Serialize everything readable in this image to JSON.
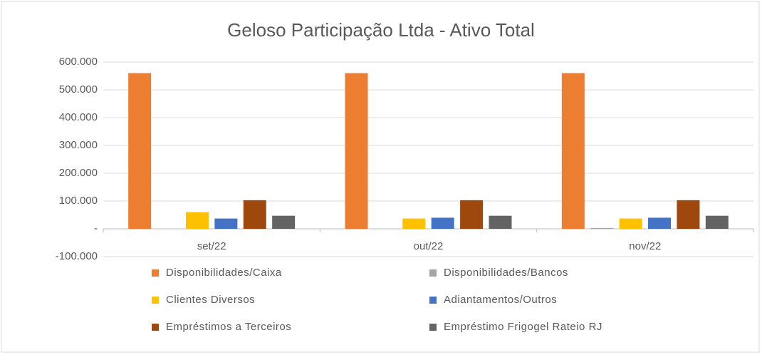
{
  "chart_data": {
    "type": "bar",
    "title": "Geloso Participação Ltda - Ativo Total",
    "categories": [
      "set/22",
      "out/22",
      "nov/22"
    ],
    "series": [
      {
        "name": "Disponibilidades/Caixa",
        "color": "#ED7D31",
        "values": [
          560000,
          560000,
          560000
        ]
      },
      {
        "name": "Disponibilidades/Bancos",
        "color": "#A5A5A5",
        "values": [
          0,
          0,
          3000
        ]
      },
      {
        "name": "Clientes Diversos",
        "color": "#FFC000",
        "values": [
          60000,
          37000,
          37000
        ]
      },
      {
        "name": "Adiantamentos/Outros",
        "color": "#4472C4",
        "values": [
          37000,
          40000,
          40000
        ]
      },
      {
        "name": "Empréstimos a Terceiros",
        "color": "#9E480E",
        "values": [
          103000,
          103000,
          103000
        ]
      },
      {
        "name": "Empréstimo Frigogel Rateio RJ",
        "color": "#636363",
        "values": [
          47000,
          47000,
          47000
        ]
      }
    ],
    "ylim": [
      -100000,
      600000
    ],
    "yticks": [
      {
        "value": -100000,
        "label": "-100.000"
      },
      {
        "value": 0,
        "label": "-"
      },
      {
        "value": 100000,
        "label": "100.000"
      },
      {
        "value": 200000,
        "label": "200.000"
      },
      {
        "value": 300000,
        "label": "300.000"
      },
      {
        "value": 400000,
        "label": "400.000"
      },
      {
        "value": 500000,
        "label": "500.000"
      },
      {
        "value": 600000,
        "label": "600.000"
      }
    ],
    "grid": true,
    "legend": "bottom"
  }
}
